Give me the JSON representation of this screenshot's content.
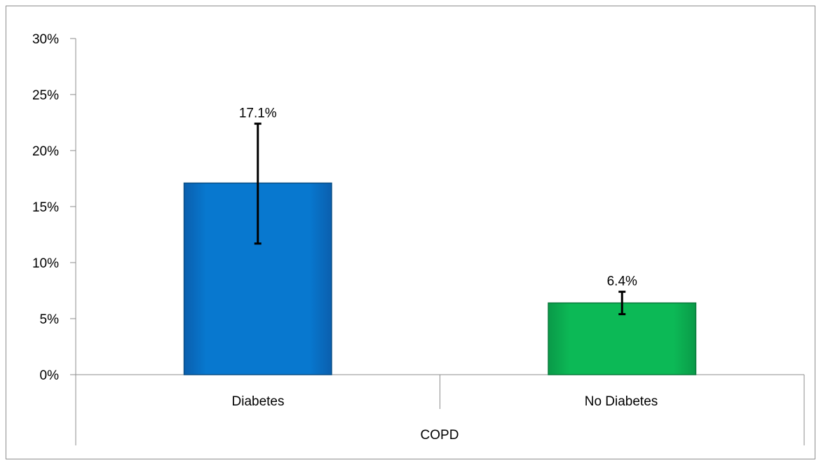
{
  "chart_data": {
    "type": "bar",
    "categories": [
      "Diabetes",
      "No Diabetes"
    ],
    "group_label": "COPD",
    "values": [
      17.1,
      6.4
    ],
    "data_labels": [
      "17.1%",
      "6.4%"
    ],
    "error_bars": [
      {
        "low": 11.7,
        "high": 22.4
      },
      {
        "low": 5.4,
        "high": 7.4
      }
    ],
    "ylim": [
      0,
      30
    ],
    "yticks": [
      0,
      5,
      10,
      15,
      20,
      25,
      30
    ],
    "ytick_labels": [
      "0%",
      "5%",
      "10%",
      "15%",
      "20%",
      "25%",
      "30%"
    ],
    "bar_colors": [
      "#0878cf",
      "#0cb956"
    ],
    "bar_edge_colors": [
      "#0a4f86",
      "#0a7a3c"
    ],
    "grid": false,
    "legend": "none",
    "title": "",
    "xlabel": "",
    "ylabel": ""
  }
}
